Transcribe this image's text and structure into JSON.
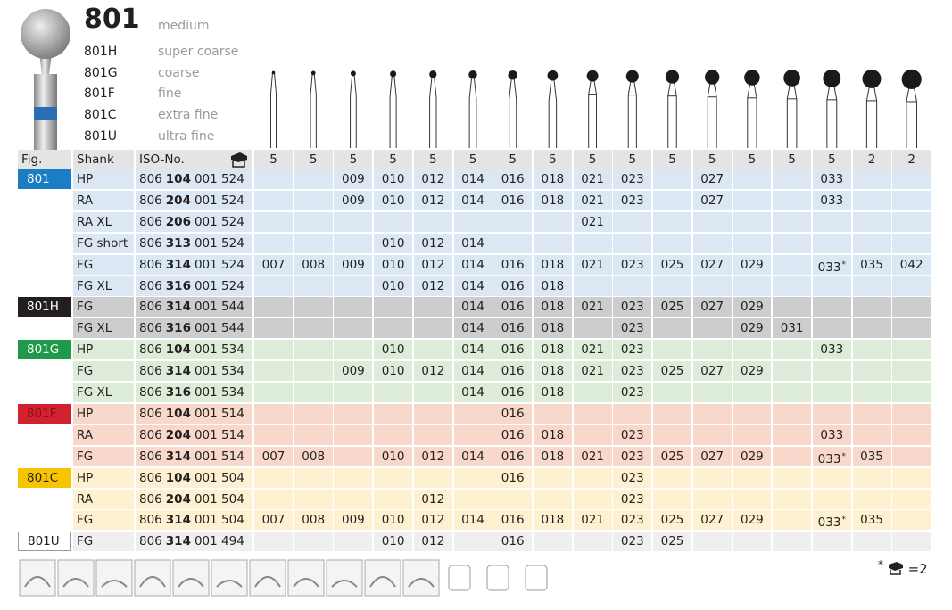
{
  "product": {
    "model": "801",
    "grit": "medium",
    "variants": [
      {
        "code": "801H",
        "grit": "super coarse"
      },
      {
        "code": "801G",
        "grit": "coarse"
      },
      {
        "code": "801F",
        "grit": "fine"
      },
      {
        "code": "801C",
        "grit": "extra fine"
      },
      {
        "code": "801U",
        "grit": "ultra fine"
      }
    ]
  },
  "table": {
    "headers": {
      "fig": "Fig.",
      "shank": "Shank",
      "iso": "ISO-No."
    },
    "pack": [
      5,
      5,
      5,
      5,
      5,
      5,
      5,
      5,
      5,
      5,
      5,
      5,
      5,
      5,
      5,
      2,
      2
    ],
    "groups": [
      {
        "fig": "801",
        "rows": [
          {
            "shank": "HP",
            "iso": [
              "806",
              "104",
              "001 524"
            ],
            "cells": [
              null,
              null,
              "009",
              "010",
              "012",
              "014",
              "016",
              "018",
              "021",
              "023",
              null,
              "027",
              null,
              null,
              "033",
              null,
              null
            ]
          },
          {
            "shank": "RA",
            "iso": [
              "806",
              "204",
              "001 524"
            ],
            "cells": [
              null,
              null,
              "009",
              "010",
              "012",
              "014",
              "016",
              "018",
              "021",
              "023",
              null,
              "027",
              null,
              null,
              "033",
              null,
              null
            ]
          },
          {
            "shank": "RA XL",
            "iso": [
              "806",
              "206",
              "001 524"
            ],
            "cells": [
              null,
              null,
              null,
              null,
              null,
              null,
              null,
              null,
              "021",
              null,
              null,
              null,
              null,
              null,
              null,
              null,
              null
            ]
          },
          {
            "shank": "FG short",
            "iso": [
              "806",
              "313",
              "001 524"
            ],
            "cells": [
              null,
              null,
              null,
              "010",
              "012",
              "014",
              null,
              null,
              null,
              null,
              null,
              null,
              null,
              null,
              null,
              null,
              null
            ]
          },
          {
            "shank": "FG",
            "iso": [
              "806",
              "314",
              "001 524"
            ],
            "cells": [
              "007",
              "008",
              "009",
              "010",
              "012",
              "014",
              "016",
              "018",
              "021",
              "023",
              "025",
              "027",
              "029",
              null,
              {
                "text": "033",
                "note": "*"
              },
              "035",
              "042"
            ]
          },
          {
            "shank": "FG XL",
            "iso": [
              "806",
              "316",
              "001 524"
            ],
            "cells": [
              null,
              null,
              null,
              "010",
              "012",
              "014",
              "016",
              "018",
              null,
              null,
              null,
              null,
              null,
              null,
              null,
              null,
              null
            ]
          }
        ]
      },
      {
        "fig": "801H",
        "rows": [
          {
            "shank": "FG",
            "iso": [
              "806",
              "314",
              "001 544"
            ],
            "cells": [
              null,
              null,
              null,
              null,
              null,
              "014",
              "016",
              "018",
              "021",
              "023",
              "025",
              "027",
              "029",
              null,
              null,
              null,
              null
            ]
          },
          {
            "shank": "FG XL",
            "iso": [
              "806",
              "316",
              "001 544"
            ],
            "cells": [
              null,
              null,
              null,
              null,
              null,
              "014",
              "016",
              "018",
              null,
              "023",
              null,
              null,
              "029",
              "031",
              null,
              null,
              null
            ]
          }
        ]
      },
      {
        "fig": "801G",
        "rows": [
          {
            "shank": "HP",
            "iso": [
              "806",
              "104",
              "001 534"
            ],
            "cells": [
              null,
              null,
              null,
              "010",
              null,
              "014",
              "016",
              "018",
              "021",
              "023",
              null,
              null,
              null,
              null,
              "033",
              null,
              null
            ]
          },
          {
            "shank": "FG",
            "iso": [
              "806",
              "314",
              "001 534"
            ],
            "cells": [
              null,
              null,
              "009",
              "010",
              "012",
              "014",
              "016",
              "018",
              "021",
              "023",
              "025",
              "027",
              "029",
              null,
              null,
              null,
              null
            ]
          },
          {
            "shank": "FG XL",
            "iso": [
              "806",
              "316",
              "001 534"
            ],
            "cells": [
              null,
              null,
              null,
              null,
              null,
              "014",
              "016",
              "018",
              null,
              "023",
              null,
              null,
              null,
              null,
              null,
              null,
              null
            ]
          }
        ]
      },
      {
        "fig": "801F",
        "rows": [
          {
            "shank": "HP",
            "iso": [
              "806",
              "104",
              "001 514"
            ],
            "cells": [
              null,
              null,
              null,
              null,
              null,
              null,
              "016",
              null,
              null,
              null,
              null,
              null,
              null,
              null,
              null,
              null,
              null
            ]
          },
          {
            "shank": "RA",
            "iso": [
              "806",
              "204",
              "001 514"
            ],
            "cells": [
              null,
              null,
              null,
              null,
              null,
              null,
              "016",
              "018",
              null,
              "023",
              null,
              null,
              null,
              null,
              "033",
              null,
              null
            ]
          },
          {
            "shank": "FG",
            "iso": [
              "806",
              "314",
              "001 514"
            ],
            "cells": [
              "007",
              "008",
              null,
              "010",
              "012",
              "014",
              "016",
              "018",
              "021",
              "023",
              "025",
              "027",
              "029",
              null,
              {
                "text": "033",
                "note": "*"
              },
              "035",
              null
            ]
          }
        ]
      },
      {
        "fig": "801C",
        "rows": [
          {
            "shank": "HP",
            "iso": [
              "806",
              "104",
              "001 504"
            ],
            "cells": [
              null,
              null,
              null,
              null,
              null,
              null,
              "016",
              null,
              null,
              "023",
              null,
              null,
              null,
              null,
              null,
              null,
              null
            ]
          },
          {
            "shank": "RA",
            "iso": [
              "806",
              "204",
              "001 504"
            ],
            "cells": [
              null,
              null,
              null,
              null,
              "012",
              null,
              null,
              null,
              null,
              "023",
              null,
              null,
              null,
              null,
              null,
              null,
              null
            ]
          },
          {
            "shank": "FG",
            "iso": [
              "806",
              "314",
              "001 504"
            ],
            "cells": [
              "007",
              "008",
              "009",
              "010",
              "012",
              "014",
              "016",
              "018",
              "021",
              "023",
              "025",
              "027",
              "029",
              null,
              {
                "text": "033",
                "note": "*"
              },
              "035",
              null
            ]
          }
        ]
      },
      {
        "fig": "801U",
        "rows": [
          {
            "shank": "FG",
            "iso": [
              "806",
              "314",
              "001 494"
            ],
            "cells": [
              null,
              null,
              null,
              "010",
              "012",
              null,
              "016",
              null,
              null,
              "023",
              "025",
              null,
              null,
              null,
              null,
              null,
              null
            ]
          }
        ]
      }
    ]
  },
  "footnote": {
    "mark": "*",
    "text": "=2"
  }
}
